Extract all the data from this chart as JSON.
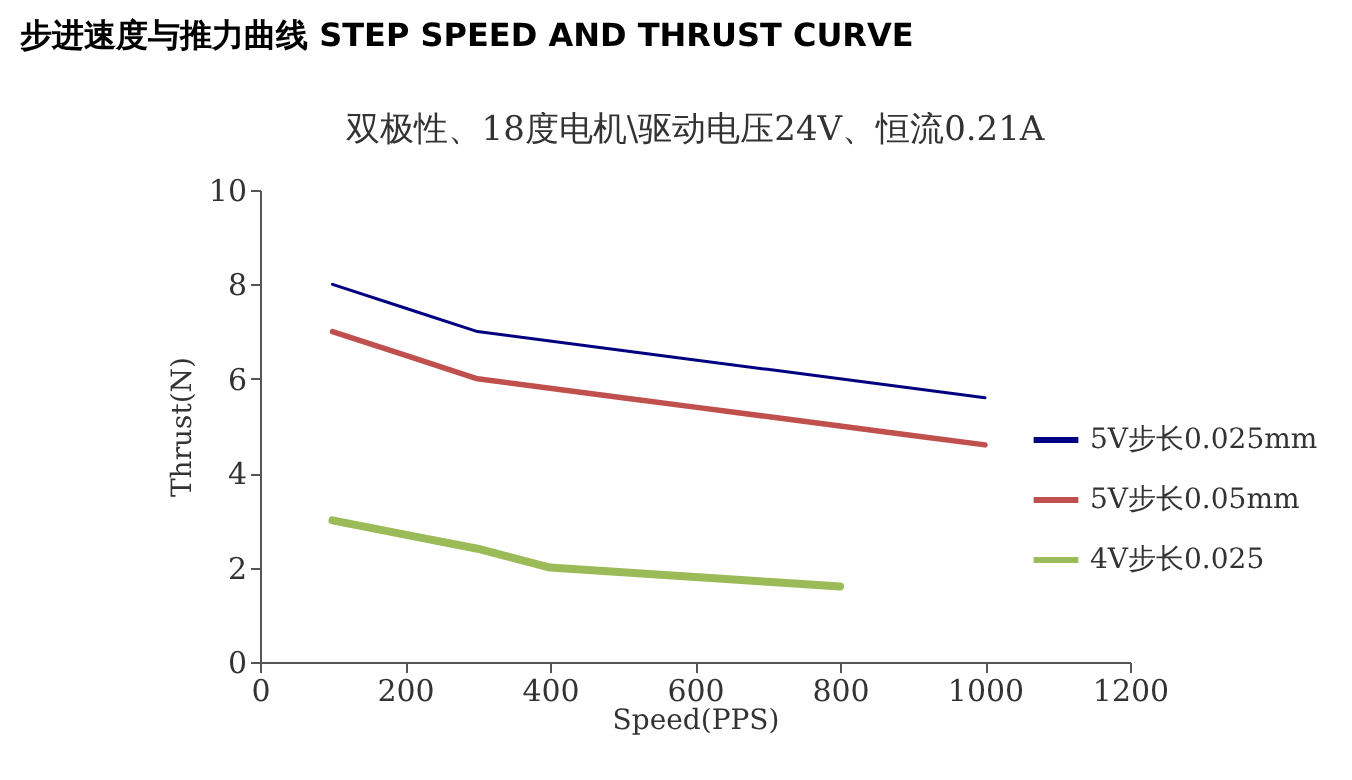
{
  "chart_data": {
    "type": "line",
    "title": "步进速度与推力曲线 STEP SPEED AND THRUST CURVE",
    "subtitle": "双极性、18度电机\\驱动电压24V、恒流0.21A",
    "xlabel": "Speed(PPS)",
    "ylabel": "Thrust(N)",
    "x": [
      100,
      200,
      300,
      400,
      500,
      600,
      700,
      800,
      900,
      1000
    ],
    "series": [
      {
        "name": "5V步长0.025mm",
        "color": "#000080",
        "values": [
          8,
          7.5,
          7,
          6.8,
          6.6,
          6.4,
          6.2,
          6.0,
          5.8,
          5.6
        ]
      },
      {
        "name": "5V步长0.05mm",
        "color": "#c0504d",
        "values": [
          7,
          6.5,
          6,
          5.8,
          5.6,
          5.4,
          5.2,
          5.0,
          4.8,
          4.6
        ]
      },
      {
        "name": "4V步长0.025",
        "color": "#9bbb59",
        "x": [
          100,
          200,
          300,
          400,
          500,
          600,
          700,
          800
        ],
        "values": [
          3,
          2.7,
          2.4,
          2,
          1.9,
          1.8,
          1.7,
          1.6
        ]
      }
    ],
    "xlim": [
      0,
      1200
    ],
    "xticks": [
      0,
      200,
      400,
      600,
      800,
      1000,
      1200
    ],
    "ylim": [
      0,
      10
    ],
    "yticks": [
      0,
      2,
      4,
      6,
      8,
      10
    ],
    "grid": false,
    "legend": "right",
    "marker": "none",
    "line_style": "solid"
  }
}
